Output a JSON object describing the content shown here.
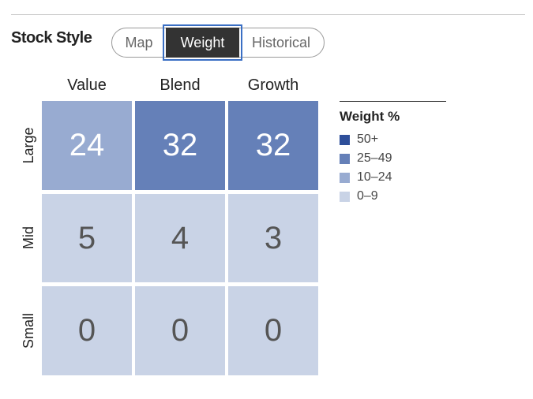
{
  "header": {
    "title": "Stock Style",
    "tabs": [
      "Map",
      "Weight",
      "Historical"
    ],
    "active_tab": 1
  },
  "grid": {
    "columns": [
      "Value",
      "Blend",
      "Growth"
    ],
    "rows": [
      "Large",
      "Mid",
      "Small"
    ],
    "cells": [
      [
        24,
        32,
        32
      ],
      [
        5,
        4,
        3
      ],
      [
        0,
        0,
        0
      ]
    ],
    "colors": [
      [
        "#98abd1",
        "#6580b8",
        "#6580b8"
      ],
      [
        "#c9d3e6",
        "#c9d3e6",
        "#c9d3e6"
      ],
      [
        "#c9d3e6",
        "#c9d3e6",
        "#c9d3e6"
      ]
    ]
  },
  "legend": {
    "title": "Weight %",
    "items": [
      {
        "label": "50+",
        "color": "#2e4f9a"
      },
      {
        "label": "25–49",
        "color": "#6580b8"
      },
      {
        "label": "10–24",
        "color": "#98abd1"
      },
      {
        "label": "0–9",
        "color": "#c9d3e6"
      }
    ]
  }
}
